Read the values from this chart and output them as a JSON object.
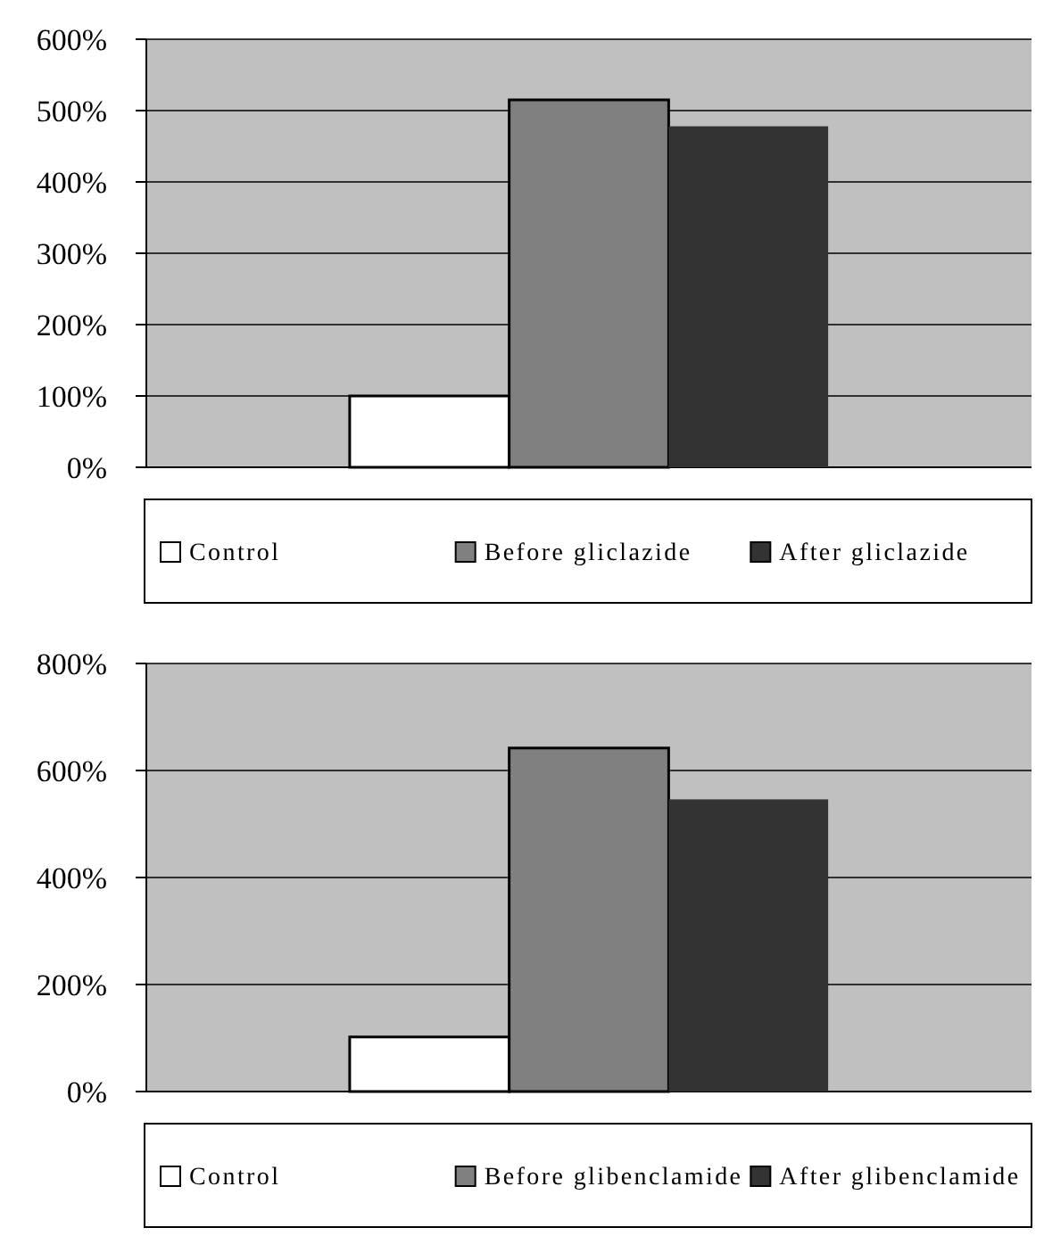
{
  "chart_data": [
    {
      "type": "bar",
      "categories": [
        null
      ],
      "series": [
        {
          "name": "Control",
          "color": "#ffffff",
          "values": [
            100
          ]
        },
        {
          "name": "Before gliclazide",
          "color": "#808080",
          "values": [
            515
          ]
        },
        {
          "name": "After gliclazide",
          "color": "#333333",
          "values": [
            478
          ]
        }
      ],
      "ylim": [
        0,
        600
      ],
      "yticks": [
        {
          "value": 0,
          "label": "0%"
        },
        {
          "value": 100,
          "label": "100%"
        },
        {
          "value": 200,
          "label": "200%"
        },
        {
          "value": 300,
          "label": "300%"
        },
        {
          "value": 400,
          "label": "400%"
        },
        {
          "value": 500,
          "label": "500%"
        },
        {
          "value": 600,
          "label": "600%"
        }
      ],
      "grid": "y",
      "legend": "bottom"
    },
    {
      "type": "bar",
      "categories": [
        null
      ],
      "series": [
        {
          "name": "Control",
          "color": "#ffffff",
          "values": [
            102
          ]
        },
        {
          "name": "Before glibenclamide",
          "color": "#808080",
          "values": [
            642
          ]
        },
        {
          "name": "After glibenclamide",
          "color": "#333333",
          "values": [
            546
          ]
        }
      ],
      "ylim": [
        0,
        800
      ],
      "yticks": [
        {
          "value": 0,
          "label": "0%"
        },
        {
          "value": 200,
          "label": "200%"
        },
        {
          "value": 400,
          "label": "400%"
        },
        {
          "value": 600,
          "label": "600%"
        },
        {
          "value": 800,
          "label": "800%"
        }
      ],
      "grid": "y",
      "legend": "bottom"
    }
  ]
}
